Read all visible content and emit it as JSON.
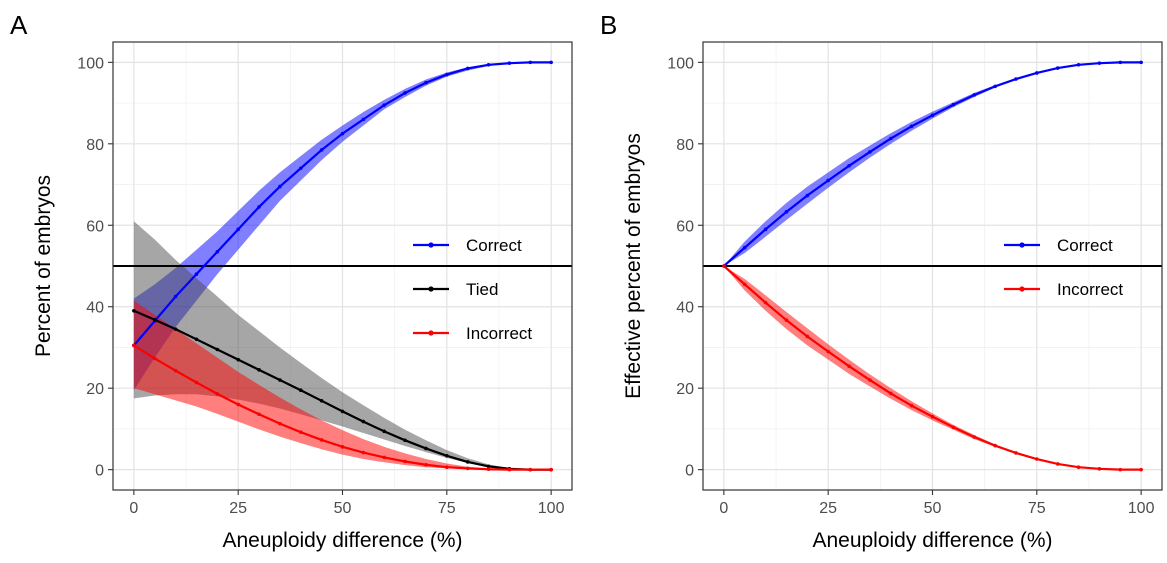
{
  "chart_data": [
    {
      "type": "line",
      "panel_label": "A",
      "xlabel": "Aneuploidy difference (%)",
      "ylabel": "Percent of embryos",
      "xlim": [
        0,
        100
      ],
      "ylim": [
        0,
        100
      ],
      "xticks": [
        0,
        25,
        50,
        75,
        100
      ],
      "yticks": [
        0,
        20,
        40,
        60,
        80,
        100
      ],
      "grid": true,
      "legend_position": "right",
      "hline": 50,
      "series": [
        {
          "name": "Correct",
          "color": "#0000ff",
          "band_color": "#0000ff",
          "x": [
            0,
            5,
            10,
            15,
            20,
            25,
            30,
            35,
            40,
            45,
            50,
            55,
            60,
            65,
            70,
            75,
            80,
            85,
            90,
            95,
            100
          ],
          "y": [
            30.5,
            36.5,
            42.5,
            48.0,
            53.5,
            59.0,
            64.5,
            69.5,
            74.0,
            78.5,
            82.5,
            86.0,
            89.5,
            92.5,
            95.0,
            97.0,
            98.5,
            99.4,
            99.8,
            100.0,
            100.0
          ],
          "lower": [
            19.5,
            27.5,
            35.0,
            41.5,
            48.0,
            54.0,
            60.0,
            66.0,
            71.0,
            76.0,
            80.5,
            84.5,
            88.5,
            91.5,
            94.3,
            96.5,
            98.0,
            99.1,
            99.6,
            99.9,
            100.0
          ],
          "upper": [
            42.0,
            45.5,
            49.5,
            54.0,
            58.5,
            63.5,
            68.5,
            73.0,
            77.0,
            81.0,
            84.5,
            87.8,
            90.8,
            93.5,
            95.8,
            97.5,
            98.8,
            99.6,
            99.9,
            100.0,
            100.0
          ]
        },
        {
          "name": "Tied",
          "color": "#000000",
          "band_color": "#4d4d4d",
          "x": [
            0,
            5,
            10,
            15,
            20,
            25,
            30,
            35,
            40,
            45,
            50,
            55,
            60,
            65,
            70,
            75,
            80,
            85,
            90,
            95,
            100
          ],
          "y": [
            39.0,
            36.8,
            34.5,
            32.0,
            29.5,
            27.0,
            24.5,
            22.0,
            19.5,
            16.9,
            14.3,
            11.8,
            9.4,
            7.2,
            5.2,
            3.4,
            1.9,
            0.8,
            0.2,
            0.0,
            0.0
          ],
          "lower": [
            17.5,
            18.2,
            18.5,
            18.5,
            18.0,
            17.2,
            16.2,
            15.0,
            13.6,
            12.1,
            10.6,
            9.0,
            7.4,
            5.8,
            4.3,
            2.9,
            1.6,
            0.7,
            0.2,
            0.0,
            0.0
          ],
          "upper": [
            61.0,
            56.5,
            51.5,
            47.0,
            42.5,
            38.0,
            34.0,
            30.0,
            26.2,
            22.5,
            19.0,
            15.8,
            12.7,
            9.8,
            7.2,
            4.8,
            2.8,
            1.3,
            0.4,
            0.1,
            0.0
          ]
        },
        {
          "name": "Incorrect",
          "color": "#ff0000",
          "band_color": "#ff0000",
          "x": [
            0,
            5,
            10,
            15,
            20,
            25,
            30,
            35,
            40,
            45,
            50,
            55,
            60,
            65,
            70,
            75,
            80,
            85,
            90,
            95,
            100
          ],
          "y": [
            30.5,
            27.3,
            24.3,
            21.4,
            18.6,
            16.0,
            13.6,
            11.3,
            9.2,
            7.3,
            5.6,
            4.2,
            3.0,
            2.0,
            1.2,
            0.6,
            0.3,
            0.1,
            0.0,
            0.0,
            0.0
          ],
          "lower": [
            20.0,
            18.5,
            17.0,
            15.5,
            13.7,
            11.8,
            9.9,
            8.1,
            6.5,
            5.0,
            3.7,
            2.6,
            1.8,
            1.1,
            0.6,
            0.3,
            0.1,
            0.0,
            0.0,
            0.0,
            0.0
          ],
          "upper": [
            41.5,
            38.0,
            34.5,
            31.0,
            27.5,
            24.0,
            20.8,
            17.7,
            14.8,
            12.1,
            9.7,
            7.5,
            5.6,
            4.0,
            2.6,
            1.5,
            0.7,
            0.3,
            0.1,
            0.0,
            0.0
          ]
        }
      ]
    },
    {
      "type": "line",
      "panel_label": "B",
      "xlabel": "Aneuploidy difference (%)",
      "ylabel": "Effective percent of embryos",
      "xlim": [
        0,
        100
      ],
      "ylim": [
        0,
        100
      ],
      "xticks": [
        0,
        25,
        50,
        75,
        100
      ],
      "yticks": [
        0,
        20,
        40,
        60,
        80,
        100
      ],
      "grid": true,
      "legend_position": "right",
      "hline": 50,
      "series": [
        {
          "name": "Correct",
          "color": "#0000ff",
          "band_color": "#0000ff",
          "x": [
            0,
            5,
            10,
            15,
            20,
            25,
            30,
            35,
            40,
            45,
            50,
            55,
            60,
            65,
            70,
            75,
            80,
            85,
            90,
            95,
            100
          ],
          "y": [
            50.0,
            54.5,
            59.0,
            63.3,
            67.3,
            71.0,
            74.6,
            78.0,
            81.3,
            84.3,
            87.0,
            89.6,
            92.0,
            94.1,
            95.9,
            97.4,
            98.6,
            99.4,
            99.8,
            100.0,
            100.0
          ],
          "lower": [
            50.0,
            53.2,
            57.2,
            61.3,
            65.3,
            69.2,
            73.0,
            76.6,
            80.0,
            83.2,
            86.2,
            89.0,
            91.5,
            93.8,
            95.7,
            97.3,
            98.5,
            99.3,
            99.8,
            100.0,
            100.0
          ],
          "upper": [
            50.0,
            56.0,
            61.0,
            65.5,
            69.5,
            73.0,
            76.5,
            79.6,
            82.6,
            85.4,
            87.9,
            90.2,
            92.5,
            94.4,
            96.1,
            97.6,
            98.7,
            99.5,
            99.9,
            100.0,
            100.0
          ]
        },
        {
          "name": "Incorrect",
          "color": "#ff0000",
          "band_color": "#ff0000",
          "x": [
            0,
            5,
            10,
            15,
            20,
            25,
            30,
            35,
            40,
            45,
            50,
            55,
            60,
            65,
            70,
            75,
            80,
            85,
            90,
            95,
            100
          ],
          "y": [
            50.0,
            45.5,
            41.0,
            36.7,
            32.7,
            29.0,
            25.4,
            22.0,
            18.7,
            15.7,
            13.0,
            10.4,
            8.0,
            5.9,
            4.1,
            2.6,
            1.4,
            0.6,
            0.2,
            0.0,
            0.0
          ],
          "lower": [
            50.0,
            44.0,
            39.0,
            34.5,
            30.5,
            27.0,
            23.5,
            20.4,
            17.4,
            14.6,
            12.1,
            9.8,
            7.5,
            5.6,
            3.9,
            2.4,
            1.3,
            0.5,
            0.1,
            0.0,
            0.0
          ],
          "upper": [
            50.0,
            46.8,
            42.8,
            38.7,
            34.7,
            30.8,
            27.0,
            23.4,
            20.0,
            16.8,
            13.8,
            11.0,
            8.5,
            6.2,
            4.3,
            2.7,
            1.5,
            0.7,
            0.2,
            0.0,
            0.0
          ]
        }
      ]
    }
  ]
}
